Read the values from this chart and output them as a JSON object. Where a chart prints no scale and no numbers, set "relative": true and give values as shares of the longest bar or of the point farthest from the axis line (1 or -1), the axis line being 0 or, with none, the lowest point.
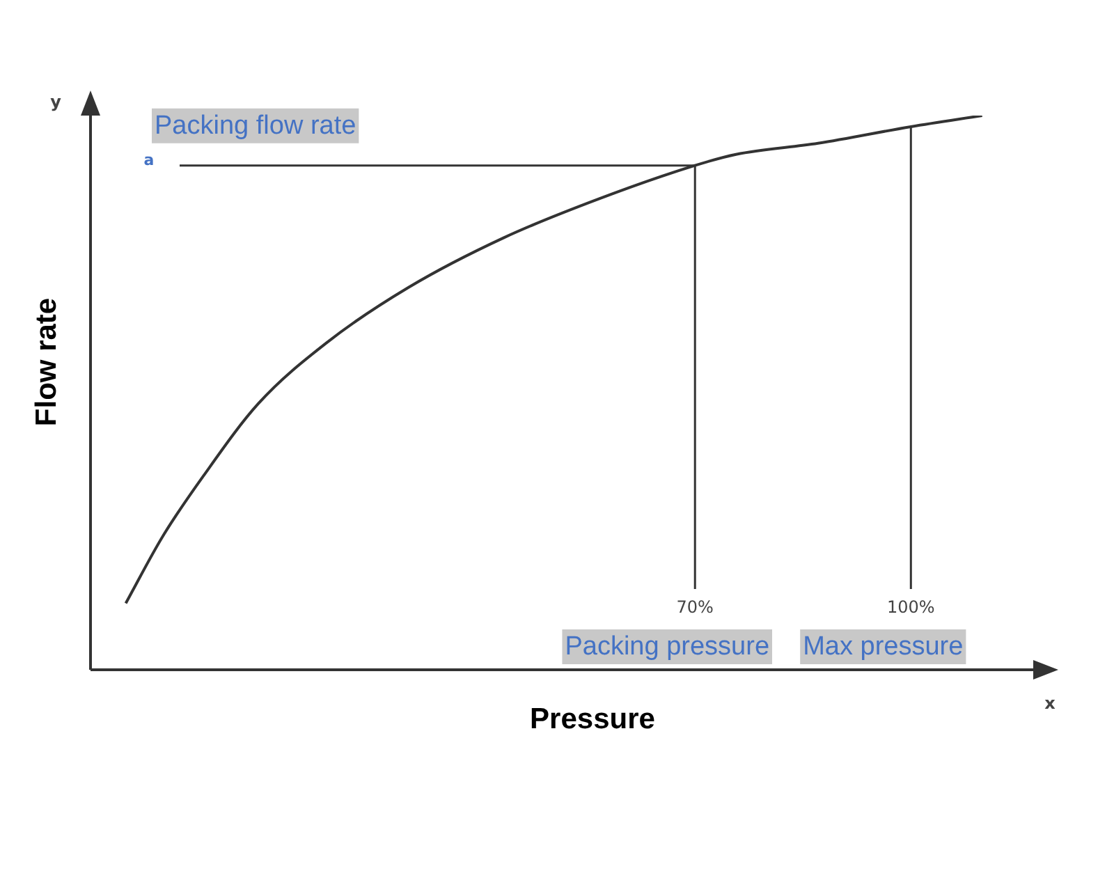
{
  "chart_data": {
    "type": "line",
    "relative": true,
    "xlabel": "Pressure",
    "ylabel": "Flow rate",
    "x": [
      -9.1,
      -4,
      1.7,
      9.3,
      18.8,
      30.2,
      43.5,
      56.7,
      70,
      75.7,
      87.1,
      100,
      109.9
    ],
    "series": [
      {
        "color": "#333333",
        "values": [
          0.12,
          0.24,
          0.35,
          0.48,
          0.59,
          0.69,
          0.78,
          0.85,
          0.91,
          0.93,
          0.95,
          0.98,
          1
        ]
      }
    ],
    "xlim": [
      -14,
      117
    ],
    "xticks": [
      {
        "value": 70,
        "label": "70%"
      },
      {
        "value": 100,
        "label": "100%"
      }
    ],
    "ref_lines": [
      {
        "axis": "x",
        "value": 70,
        "label": "Packing pressure",
        "color": "#333333"
      },
      {
        "axis": "x",
        "value": 100,
        "label": "Max pressure",
        "color": "#333333"
      },
      {
        "axis": "y",
        "value": 0.91,
        "label": "a",
        "color": "#333333"
      }
    ],
    "annotations": [
      "Packing flow rate",
      "y",
      "x"
    ],
    "legend": false,
    "marker": "none",
    "line_style": "solid"
  }
}
